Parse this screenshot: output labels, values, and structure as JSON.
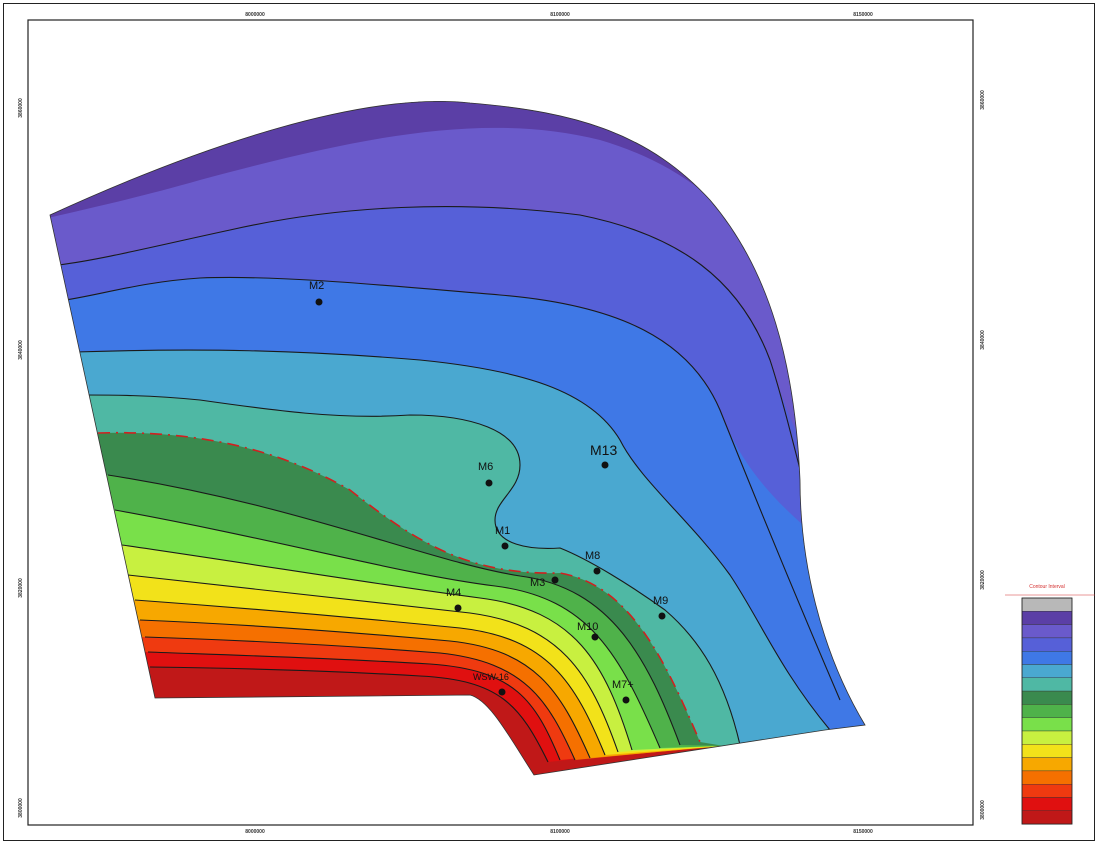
{
  "axes": {
    "top_ticks": [
      "8000000",
      "8100000",
      "8150000"
    ],
    "bottom_ticks": [
      "8000000",
      "8100000",
      "8150000"
    ],
    "left_ticks": [
      "3860000",
      "3840000",
      "3820000",
      "3800000"
    ],
    "right_ticks": [
      "3860000",
      "3840000",
      "3820000",
      "3800000"
    ]
  },
  "wells": [
    {
      "name": "M2"
    },
    {
      "name": "M13"
    },
    {
      "name": "M6"
    },
    {
      "name": "M1"
    },
    {
      "name": "M8"
    },
    {
      "name": "M3"
    },
    {
      "name": "M4"
    },
    {
      "name": "M9"
    },
    {
      "name": "M10"
    },
    {
      "name": "M7+"
    },
    {
      "name": "WSW-16"
    }
  ],
  "legend": {
    "title": "Contour\nInterval",
    "colors": [
      "#b8b8b8",
      "#5b3fa6",
      "#6a5acb",
      "#5660d8",
      "#3f78e6",
      "#4aa8d0",
      "#4fb8a4",
      "#3a8a4e",
      "#4fb24a",
      "#79e04a",
      "#c8f040",
      "#f2e21a",
      "#f7a800",
      "#f57000",
      "#ef3a10",
      "#e01010",
      "#c01818"
    ]
  }
}
